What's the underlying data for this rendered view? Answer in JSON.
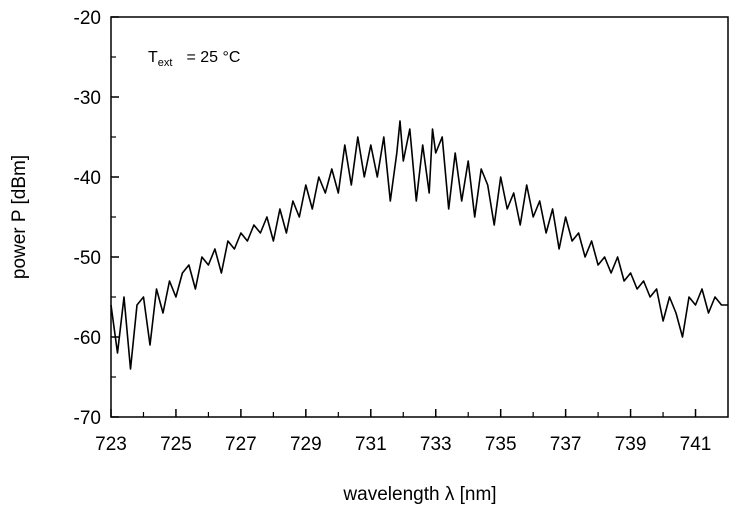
{
  "chart_data": {
    "type": "line",
    "xlabel": "wavelength λ [nm]",
    "ylabel": "power P [dBm]",
    "xlim": [
      723,
      742
    ],
    "ylim": [
      -70,
      -20
    ],
    "x_ticks": [
      723,
      725,
      727,
      729,
      731,
      733,
      735,
      737,
      739,
      741
    ],
    "y_ticks": [
      -20,
      -30,
      -40,
      -50,
      -60,
      -70
    ],
    "grid": false,
    "legend": "none",
    "line_color": "#000000",
    "annotation": {
      "symbol": "T",
      "subscript": "ext",
      "text": "= 25 °C"
    },
    "series": [
      {
        "x": [
          723.0,
          723.2,
          723.4,
          723.6,
          723.8,
          724.0,
          724.2,
          724.4,
          724.6,
          724.8,
          725.0,
          725.2,
          725.4,
          725.6,
          725.8,
          726.0,
          726.2,
          726.4,
          726.6,
          726.8,
          727.0,
          727.2,
          727.4,
          727.6,
          727.8,
          728.0,
          728.2,
          728.4,
          728.6,
          728.8,
          729.0,
          729.2,
          729.4,
          729.6,
          729.8,
          730.0,
          730.2,
          730.4,
          730.6,
          730.8,
          731.0,
          731.2,
          731.4,
          731.6,
          731.8,
          731.9,
          732.0,
          732.2,
          732.4,
          732.6,
          732.8,
          732.9,
          733.0,
          733.2,
          733.4,
          733.6,
          733.8,
          734.0,
          734.2,
          734.4,
          734.6,
          734.8,
          735.0,
          735.2,
          735.4,
          735.6,
          735.8,
          736.0,
          736.2,
          736.4,
          736.6,
          736.8,
          737.0,
          737.2,
          737.4,
          737.6,
          737.8,
          738.0,
          738.2,
          738.4,
          738.6,
          738.8,
          739.0,
          739.2,
          739.4,
          739.6,
          739.8,
          740.0,
          740.2,
          740.4,
          740.6,
          740.8,
          741.0,
          741.2,
          741.4,
          741.6,
          741.8,
          742.0
        ],
        "y": [
          -56,
          -62,
          -55,
          -64,
          -56,
          -55,
          -61,
          -54,
          -57,
          -53,
          -55,
          -52,
          -51,
          -54,
          -50,
          -51,
          -49,
          -52,
          -48,
          -49,
          -47,
          -48,
          -46,
          -47,
          -45,
          -48,
          -44,
          -47,
          -43,
          -45,
          -41,
          -44,
          -40,
          -42,
          -39,
          -42,
          -36,
          -41,
          -35,
          -40,
          -36,
          -40,
          -35,
          -43,
          -37,
          -33,
          -38,
          -34,
          -43,
          -36,
          -42,
          -34,
          -37,
          -35,
          -44,
          -37,
          -43,
          -38,
          -45,
          -39,
          -41,
          -46,
          -40,
          -44,
          -42,
          -46,
          -41,
          -45,
          -43,
          -47,
          -44,
          -49,
          -45,
          -48,
          -47,
          -50,
          -48,
          -51,
          -50,
          -52,
          -50,
          -53,
          -52,
          -54,
          -53,
          -55,
          -54,
          -58,
          -55,
          -57,
          -60,
          -55,
          -56,
          -54,
          -57,
          -55,
          -56,
          -56
        ]
      }
    ]
  }
}
